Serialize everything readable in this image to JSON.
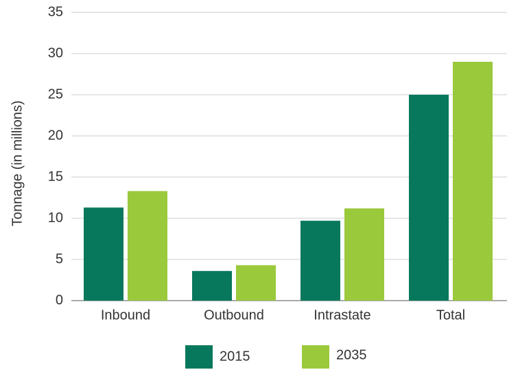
{
  "chart_data": {
    "type": "bar",
    "y_label": "Tonnage (in millions)",
    "categories": [
      "Inbound",
      "Outbound",
      "Intrastate",
      "Total"
    ],
    "series": [
      {
        "name": "2015",
        "color": "#08785c",
        "values": [
          11.3,
          3.6,
          9.7,
          25
        ]
      },
      {
        "name": "2035",
        "color": "#9bc93c",
        "values": [
          13.3,
          4.3,
          11.2,
          29
        ]
      }
    ],
    "ylim": [
      0,
      35
    ],
    "yticks": [
      0,
      5,
      10,
      15,
      20,
      25,
      30,
      35
    ],
    "grid": true
  }
}
